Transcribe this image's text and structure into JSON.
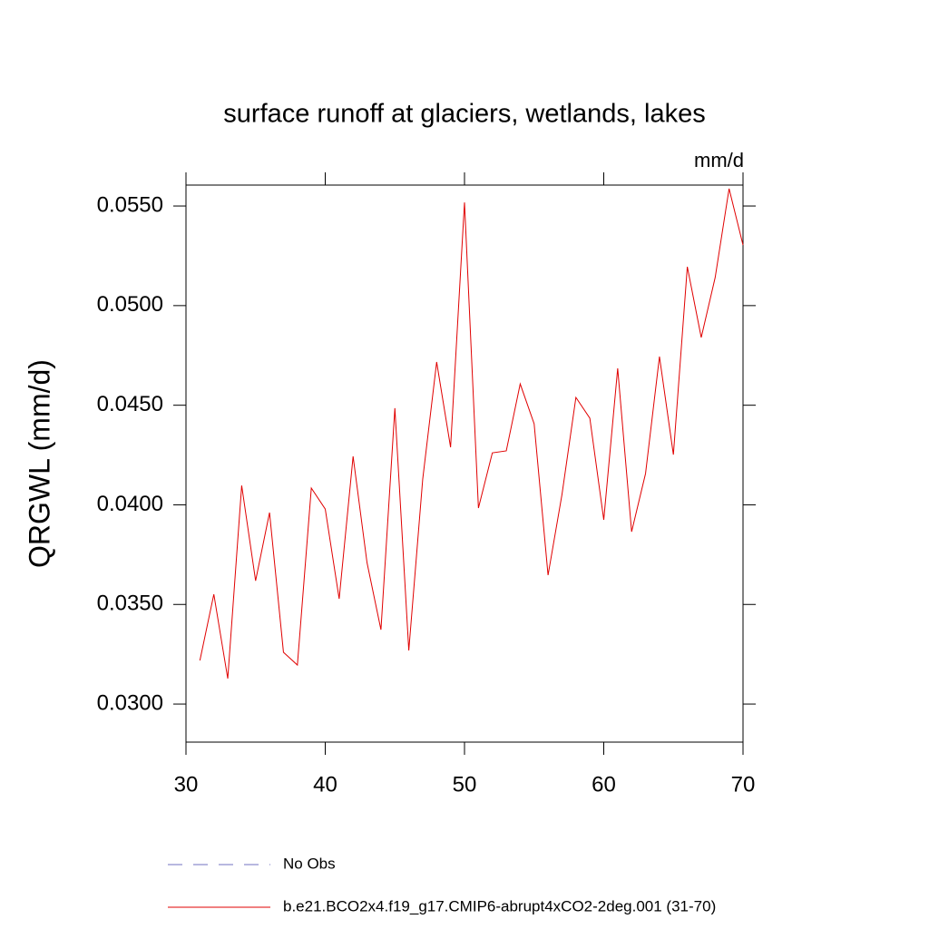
{
  "chart_data": {
    "type": "line",
    "title": "surface runoff at glaciers, wetlands, lakes",
    "units": "mm/d",
    "y_label": "QRGWL  (mm/d)",
    "x": [
      31,
      32,
      33,
      34,
      35,
      36,
      37,
      38,
      39,
      40,
      41,
      42,
      43,
      44,
      45,
      46,
      47,
      48,
      49,
      50,
      51,
      52,
      53,
      54,
      55,
      56,
      57,
      58,
      59,
      60,
      61,
      62,
      63,
      64,
      65,
      66,
      67,
      68,
      69,
      70
    ],
    "series": [
      {
        "name": "No Obs",
        "color": "#7070c0",
        "dash": true,
        "values": null
      },
      {
        "name": "b.e21.BCO2x4.f19_g17.CMIP6-abrupt4xCO2-2deg.001 (31-70)",
        "color": "#e00000",
        "dash": false,
        "values": [
          0.03219,
          0.03551,
          0.03128,
          0.04097,
          0.03619,
          0.03961,
          0.0326,
          0.03196,
          0.04084,
          0.03979,
          0.03528,
          0.04243,
          0.0371,
          0.03373,
          0.04485,
          0.03269,
          0.04129,
          0.04717,
          0.04289,
          0.05518,
          0.03984,
          0.04261,
          0.04271,
          0.04607,
          0.04407,
          0.03647,
          0.04052,
          0.04539,
          0.04435,
          0.03925,
          0.04685,
          0.03865,
          0.04157,
          0.04744,
          0.04252,
          0.05195,
          0.0484,
          0.05141,
          0.05587,
          0.05304
        ]
      }
    ],
    "xlim": [
      30,
      70
    ],
    "xticks": [
      30,
      40,
      50,
      60,
      70
    ],
    "ylim": [
      0.02809,
      0.05605
    ],
    "yticks": [
      {
        "value": 0.03,
        "label": "0.0300"
      },
      {
        "value": 0.035,
        "label": "0.0350"
      },
      {
        "value": 0.04,
        "label": "0.0400"
      },
      {
        "value": 0.045,
        "label": "0.0450"
      },
      {
        "value": 0.05,
        "label": "0.0500"
      },
      {
        "value": 0.055,
        "label": "0.0550"
      }
    ]
  }
}
